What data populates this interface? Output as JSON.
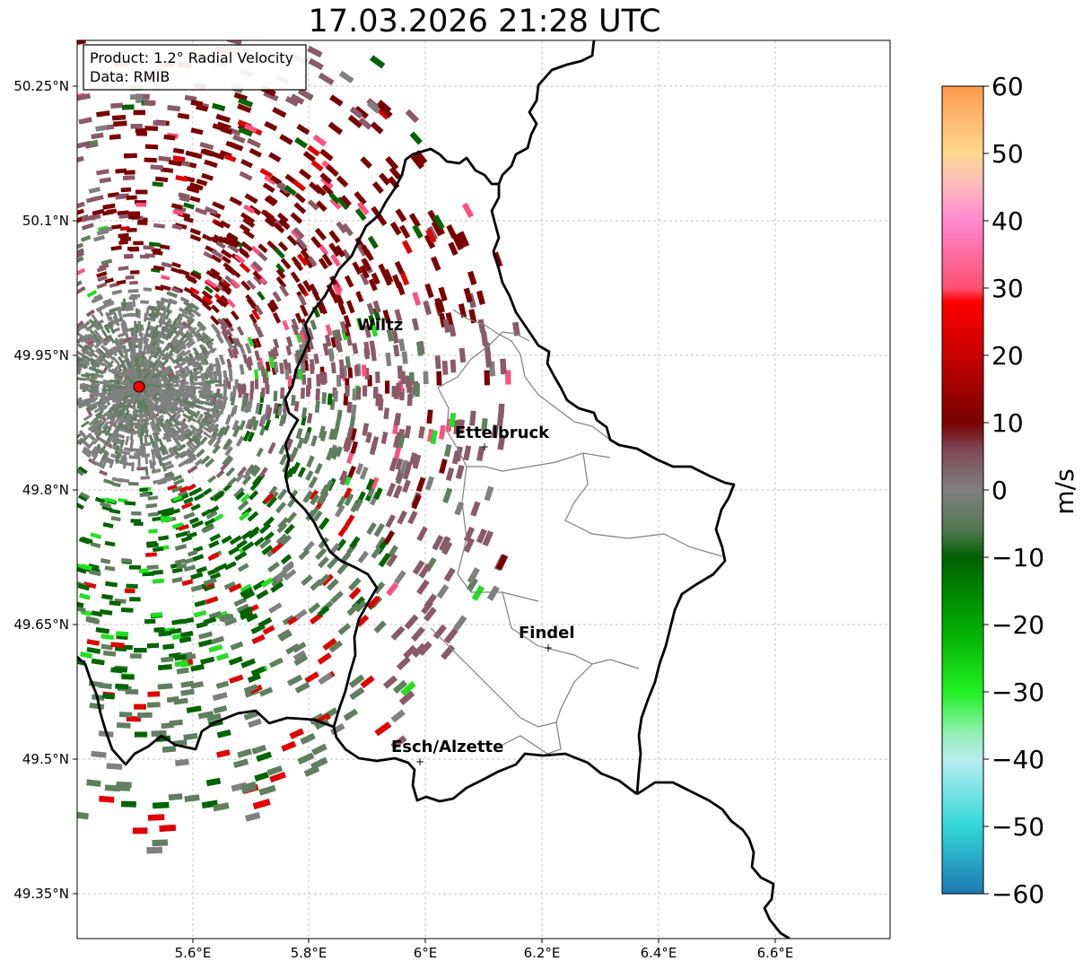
{
  "title": "17.03.2026 21:28 UTC",
  "info_box": {
    "product": "Product: 1.2° Radial Velocity",
    "data_source": "Data: RMIB"
  },
  "axes": {
    "lon_ticks": [
      "5.6°E",
      "5.8°E",
      "6°E",
      "6.2°E",
      "6.4°E",
      "6.6°E"
    ],
    "lat_ticks": [
      "50.25°N",
      "50.1°N",
      "49.95°N",
      "49.8°N",
      "49.65°N",
      "49.5°N",
      "49.35°N"
    ]
  },
  "cities": [
    {
      "name": "Wiltz",
      "lon": 5.93,
      "lat": 49.966
    },
    {
      "name": "Ettelbruck",
      "lon": 6.104,
      "lat": 49.847
    },
    {
      "name": "Findel",
      "lon": 6.211,
      "lat": 49.627
    },
    {
      "name": "Esch/Alzette",
      "lon": 5.981,
      "lat": 49.496
    }
  ],
  "radar_site": {
    "lon": 5.505,
    "lat": 49.914,
    "color": "#ff0000"
  },
  "colorbar": {
    "label": "m/s",
    "min": -60,
    "max": 60,
    "ticks": [
      "60",
      "50",
      "40",
      "30",
      "20",
      "10",
      "0",
      "−10",
      "−20",
      "−30",
      "−40",
      "−50",
      "−60"
    ],
    "stops": [
      {
        "v": -60,
        "color": "#1f77b4"
      },
      {
        "v": -50,
        "color": "#30d8d8"
      },
      {
        "v": -40,
        "color": "#b8ecf0"
      },
      {
        "v": -36,
        "color": "#90f0b0"
      },
      {
        "v": -30,
        "color": "#20f020"
      },
      {
        "v": -20,
        "color": "#00a800"
      },
      {
        "v": -10,
        "color": "#006000"
      },
      {
        "v": -6,
        "color": "#507850"
      },
      {
        "v": 0,
        "color": "#808080"
      },
      {
        "v": 6,
        "color": "#804858"
      },
      {
        "v": 10,
        "color": "#780000"
      },
      {
        "v": 20,
        "color": "#c80000"
      },
      {
        "v": 28,
        "color": "#ff0000"
      },
      {
        "v": 30,
        "color": "#ff5070"
      },
      {
        "v": 40,
        "color": "#ff88d0"
      },
      {
        "v": 45,
        "color": "#ffb8c0"
      },
      {
        "v": 50,
        "color": "#ffd890"
      },
      {
        "v": 60,
        "color": "#ff9a50"
      }
    ]
  },
  "velocity_field": {
    "description_colors": {
      "outbound_dark_red": "#7a0000",
      "mauve": "#8a5a68",
      "grey": "#808080",
      "grey_green": "#5f7f5f",
      "dark_green": "#006400",
      "bright_green": "#20e020",
      "red": "#e00000",
      "pink": "#ff5080"
    }
  }
}
